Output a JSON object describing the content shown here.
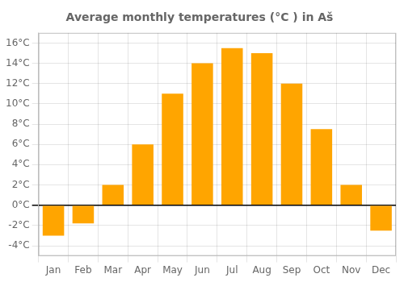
{
  "chart_data": {
    "type": "bar",
    "title": "Average monthly temperatures (°C ) in Aš",
    "categories": [
      "Jan",
      "Feb",
      "Mar",
      "Apr",
      "May",
      "Jun",
      "Jul",
      "Aug",
      "Sep",
      "Oct",
      "Nov",
      "Dec"
    ],
    "values": [
      -3.0,
      -1.8,
      2.0,
      6.0,
      11.0,
      14.0,
      15.5,
      15.0,
      12.0,
      7.5,
      2.0,
      -2.5
    ],
    "color": "#FFA500",
    "ylim": [
      -5,
      17
    ],
    "yticks": [
      {
        "value": -4,
        "label": "-4°C"
      },
      {
        "value": -2,
        "label": "-2°C"
      },
      {
        "value": 0,
        "label": "0°C"
      },
      {
        "value": 2,
        "label": "2°C"
      },
      {
        "value": 4,
        "label": "4°C"
      },
      {
        "value": 6,
        "label": "6°C"
      },
      {
        "value": 8,
        "label": "8°C"
      },
      {
        "value": 10,
        "label": "10°C"
      },
      {
        "value": 12,
        "label": "12°C"
      },
      {
        "value": 14,
        "label": "14°C"
      },
      {
        "value": 16,
        "label": "16°C"
      }
    ],
    "grid": true
  }
}
